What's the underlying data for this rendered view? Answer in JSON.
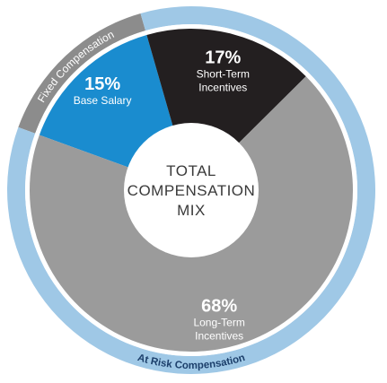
{
  "chart_data": {
    "type": "pie",
    "center_label": [
      "TOTAL",
      "COMPENSATION",
      "MIX"
    ],
    "slices": [
      {
        "value": 15,
        "label": "15%",
        "name_lines": [
          "Base Salary"
        ],
        "color": "#1a8ccf",
        "group": "fixed"
      },
      {
        "value": 17,
        "label": "17%",
        "name_lines": [
          "Short-Term",
          "Incentives"
        ],
        "color": "#231f20",
        "group": "at_risk"
      },
      {
        "value": 68,
        "label": "68%",
        "name_lines": [
          "Long-Term",
          "Incentives"
        ],
        "color": "#9b9b9b",
        "group": "at_risk"
      }
    ],
    "outer_ring": [
      {
        "label": "Fixed Compensation",
        "value": 15,
        "color": "#8c8c8c",
        "text_color": "#ffffff"
      },
      {
        "label": "At Risk Compensation",
        "value": 85,
        "color": "#9fc8e6",
        "text_color": "#1c3f6b"
      }
    ],
    "colors": {
      "background": "#ffffff",
      "center_hole": "#ffffff",
      "center_text": "#3a3a3a"
    }
  }
}
